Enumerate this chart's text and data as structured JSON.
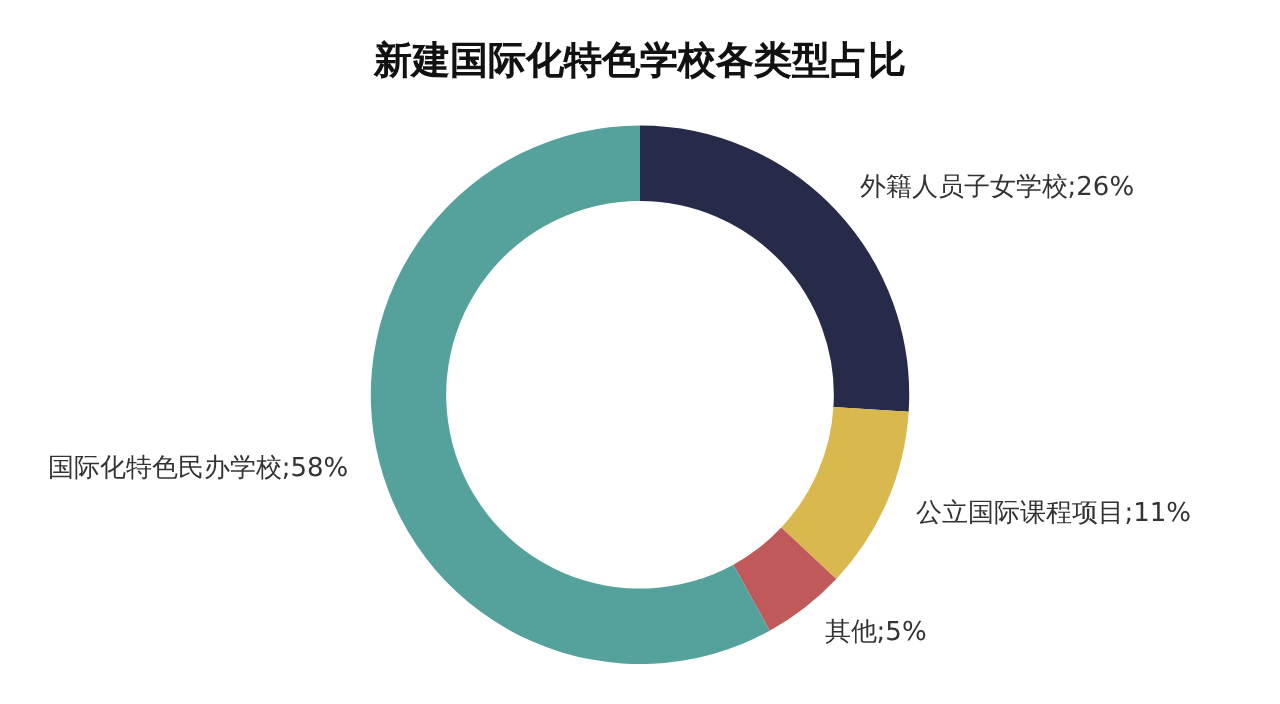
{
  "chart_data": {
    "type": "donut",
    "title": "新建国际化特色学校各类型占比",
    "categories": [
      "外籍人员子女学校",
      "公立国际课程项目",
      "其他",
      "国际化特色民办学校"
    ],
    "values": [
      26,
      11,
      5,
      58
    ],
    "colors": [
      "#252b48",
      "#d9b94e",
      "#c05a5a",
      "#55a19b"
    ],
    "value_labels": [
      ";26%",
      ";11%",
      ";5%",
      ";58%"
    ],
    "legend": false
  }
}
